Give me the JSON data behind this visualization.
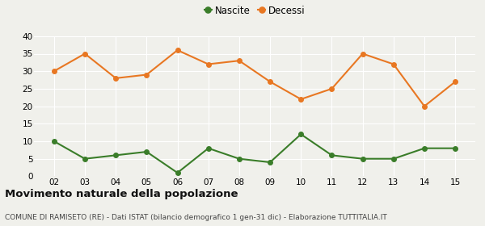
{
  "years": [
    "02",
    "03",
    "04",
    "05",
    "06",
    "07",
    "08",
    "09",
    "10",
    "11",
    "12",
    "13",
    "14",
    "15"
  ],
  "nascite": [
    10,
    5,
    6,
    7,
    1,
    8,
    5,
    4,
    12,
    6,
    5,
    5,
    8,
    8
  ],
  "decessi": [
    30,
    35,
    28,
    29,
    36,
    32,
    33,
    27,
    22,
    25,
    35,
    32,
    20,
    27
  ],
  "nascite_color": "#3a7d29",
  "decessi_color": "#e87722",
  "nascite_label": "Nascite",
  "decessi_label": "Decessi",
  "ylim": [
    0,
    40
  ],
  "yticks": [
    0,
    5,
    10,
    15,
    20,
    25,
    30,
    35,
    40
  ],
  "title": "Movimento naturale della popolazione",
  "subtitle": "COMUNE DI RAMISETO (RE) - Dati ISTAT (bilancio demografico 1 gen-31 dic) - Elaborazione TUTTITALIA.IT",
  "title_fontsize": 9.5,
  "subtitle_fontsize": 6.5,
  "bg_color": "#f0f0eb",
  "grid_color": "#ffffff",
  "marker_size": 4,
  "line_width": 1.5
}
